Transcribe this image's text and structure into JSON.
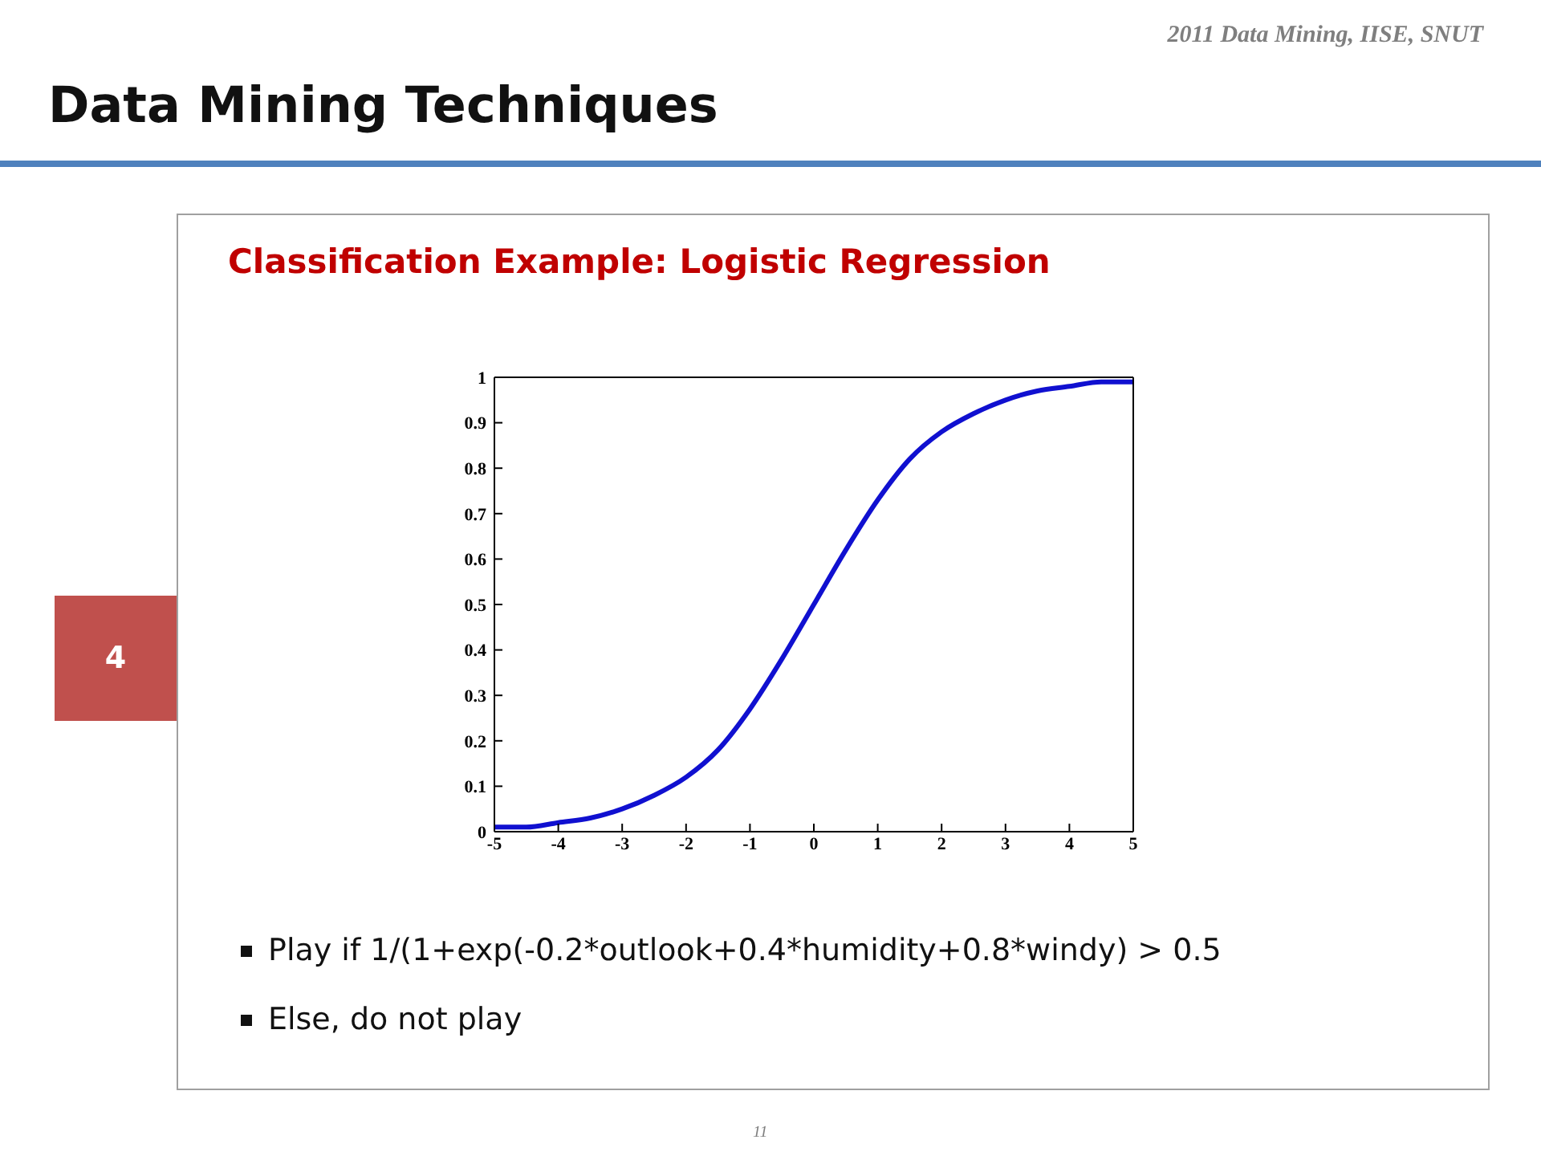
{
  "chart_data": {
    "type": "line",
    "title": "Data Mining Techniques",
    "subtitle": "Classification Example: Logistic Regression",
    "annotations": [
      "2011 Data Mining, IISE, SNUT",
      "4",
      "Play if 1/(1+exp(-0.2*outlook+0.4*humidity+0.8*windy)  > 0.5",
      "Else, do not play",
      "11"
    ],
    "x": [
      -5,
      -4.5,
      -4,
      -3.5,
      -3,
      -2.5,
      -2,
      -1.5,
      -1,
      -0.5,
      0,
      0.5,
      1,
      1.5,
      2,
      2.5,
      3,
      3.5,
      4,
      4.5,
      5
    ],
    "series": [
      {
        "color": "#1010d0",
        "values": [
          0.01,
          0.01,
          0.02,
          0.03,
          0.05,
          0.08,
          0.12,
          0.18,
          0.27,
          0.38,
          0.5,
          0.62,
          0.73,
          0.82,
          0.88,
          0.92,
          0.95,
          0.97,
          0.98,
          0.99,
          0.99
        ]
      }
    ],
    "xlim": [
      -5,
      5
    ],
    "xticks": [
      -5,
      -4,
      -3,
      -2,
      -1,
      0,
      1,
      2,
      3,
      4,
      5
    ],
    "ylim": [
      0,
      1
    ],
    "yticks": [
      0,
      0.1,
      0.2,
      0.3,
      0.4,
      0.5,
      0.6,
      0.7,
      0.8,
      0.9,
      1
    ],
    "grid": false,
    "legend": false,
    "marker": "none",
    "line_style": "solid"
  }
}
